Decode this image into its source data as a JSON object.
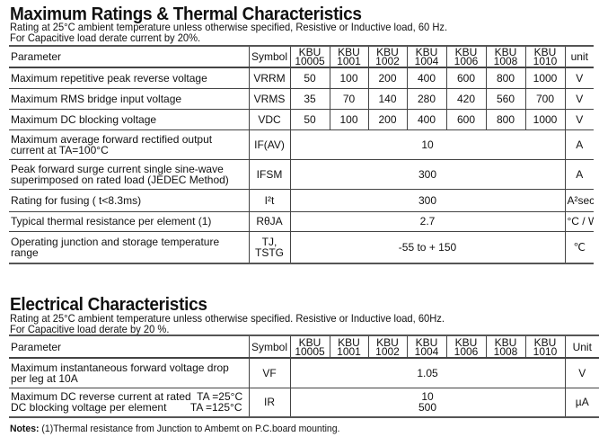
{
  "max": {
    "title": "Maximum Ratings & Thermal Characteristics",
    "subtitle_lines": [
      "Rating at 25°C ambient temperature unless otherwise specified, Resistive or Inductive load, 60 Hz.",
      "For Capacitive load derate current by 20%."
    ],
    "headers": {
      "parameter": "Parameter",
      "symbol": "Symbol",
      "unit": "unit"
    },
    "rows": [
      {
        "param": "Maximum repetitive peak reverse voltage",
        "symbol": "VRRM",
        "values": [
          "50",
          "100",
          "200",
          "400",
          "600",
          "800",
          "1000"
        ],
        "unit": "V"
      },
      {
        "param": "Maximum RMS bridge input voltage",
        "symbol": "VRMS",
        "values": [
          "35",
          "70",
          "140",
          "280",
          "420",
          "560",
          "700"
        ],
        "unit": "V"
      },
      {
        "param": "Maximum DC blocking voltage",
        "symbol": "VDC",
        "values": [
          "50",
          "100",
          "200",
          "400",
          "600",
          "800",
          "1000"
        ],
        "unit": "V"
      },
      {
        "param": "Maximum average forward rectified output current at TA=100°C",
        "symbol": "IF(AV)",
        "value": "10",
        "unit": "A"
      },
      {
        "param": "Peak forward surge current single sine-wave superimposed on rated load (JEDEC Method)",
        "symbol": "IFSM",
        "value": "300",
        "unit": "A"
      },
      {
        "param": "Rating for fusing ( t<8.3ms)",
        "symbol": "I²t",
        "value": "300",
        "unit": "A²sec"
      },
      {
        "param": "Typical  thermal resistance per element (1)",
        "symbol": "RθJA",
        "value": "2.7",
        "unit": "°C / W"
      },
      {
        "param": "Operating junction and storage temperature range",
        "symbol": "TJ, TSTG",
        "value": "-55 to + 150",
        "unit": "℃"
      }
    ]
  },
  "models": [
    [
      "KBU",
      "10005"
    ],
    [
      "KBU",
      "1001"
    ],
    [
      "KBU",
      "1002"
    ],
    [
      "KBU",
      "1004"
    ],
    [
      "KBU",
      "1006"
    ],
    [
      "KBU",
      "1008"
    ],
    [
      "KBU",
      "1010"
    ]
  ],
  "elec": {
    "title": "Electrical Characteristics",
    "subtitle_lines": [
      "Rating at 25°C ambient temperature unless otherwise specified. Resistive or Inductive load, 60Hz.",
      "For Capacitive load derate by 20 %."
    ],
    "headers": {
      "parameter": "Parameter",
      "symbol": "Symbol",
      "unit": "Unit"
    },
    "rows": [
      {
        "param": "Maximum instantaneous forward voltage drop per leg at 10A",
        "symbol": "VF",
        "value": "1.05",
        "unit": "V"
      },
      {
        "param": "Maximum DC reverse current at rated  TA =25°C\nDC blocking voltage per element        TA =125°C",
        "symbol": "IR",
        "value": "10\n500",
        "unit": "µA"
      }
    ]
  },
  "notes": {
    "label": "Notes:",
    "text": " (1)Thermal resistance from Junction to Ambemt on P.C.board mounting."
  }
}
